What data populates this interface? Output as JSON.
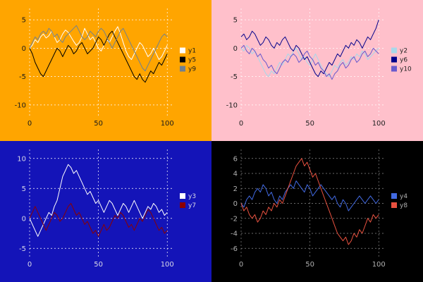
{
  "chart_data": [
    {
      "type": "line",
      "position": "top-left",
      "background": "#FFA500",
      "text_color": "#1a1a1a",
      "grid_color": "#ffffff",
      "xlim": [
        0,
        105
      ],
      "ylim": [
        -12,
        7
      ],
      "xticks": [
        0,
        50,
        100
      ],
      "yticks": [
        5,
        0,
        -5,
        -10
      ],
      "legend_position": "right",
      "grid": true,
      "x": [
        0,
        2,
        4,
        6,
        8,
        10,
        12,
        14,
        16,
        18,
        20,
        22,
        24,
        26,
        28,
        30,
        32,
        34,
        36,
        38,
        40,
        42,
        44,
        46,
        48,
        50,
        52,
        54,
        56,
        58,
        60,
        62,
        64,
        66,
        68,
        70,
        72,
        74,
        76,
        78,
        80,
        82,
        84,
        86,
        88,
        90,
        92,
        94,
        96,
        98,
        100
      ],
      "series": [
        {
          "name": "y1",
          "color": "#ffffff",
          "values": [
            0,
            0.5,
            1.5,
            1,
            2,
            2.5,
            1.8,
            2.2,
            3,
            2,
            1,
            1.5,
            2.5,
            3.2,
            2.8,
            2,
            1.2,
            0.5,
            1,
            2,
            3.5,
            2.5,
            1.5,
            2,
            1,
            0,
            -0.5,
            0.5,
            1.5,
            1,
            2,
            3,
            3.8,
            2.5,
            1,
            -0.5,
            -1.5,
            -2,
            -1,
            0,
            1,
            0.5,
            -0.5,
            -1.5,
            -1,
            0,
            -1,
            -2,
            -1.5,
            -0.5,
            0.5
          ]
        },
        {
          "name": "y5",
          "color": "#000000",
          "values": [
            0,
            -1,
            -2.5,
            -3.5,
            -4.5,
            -5,
            -4,
            -3,
            -2,
            -1,
            0,
            -0.5,
            -1.5,
            -0.5,
            0.5,
            0,
            -1,
            -0.5,
            0.5,
            1,
            0,
            -1,
            -0.5,
            0,
            1,
            2,
            1.5,
            0.5,
            1.5,
            2.5,
            3,
            2,
            1,
            0,
            -1,
            -2,
            -3,
            -4,
            -5,
            -5.5,
            -4.5,
            -5.5,
            -6,
            -5,
            -4,
            -4.5,
            -3.5,
            -2.5,
            -3,
            -2,
            -1
          ]
        },
        {
          "name": "y9",
          "color": "#708090",
          "values": [
            0,
            1,
            2,
            1.5,
            2.5,
            3,
            2.5,
            3.5,
            3,
            2,
            2.5,
            1.5,
            1,
            2,
            2.5,
            3,
            3.5,
            4,
            3,
            2,
            1.5,
            2,
            3,
            2.5,
            2,
            3,
            3.5,
            3,
            2,
            1,
            0,
            1,
            2,
            3,
            3.5,
            2.5,
            1.5,
            0.5,
            -0.5,
            -1.5,
            -2.5,
            -3.5,
            -4,
            -3,
            -2,
            -1,
            0,
            1,
            2,
            2.5,
            2
          ]
        }
      ]
    },
    {
      "type": "line",
      "position": "top-right",
      "background": "#FFC0CB",
      "text_color": "#222222",
      "grid_color": "#ffffff",
      "xlim": [
        0,
        105
      ],
      "ylim": [
        -12,
        7
      ],
      "xticks": [
        0,
        50,
        100
      ],
      "yticks": [
        5,
        0,
        -5,
        -10
      ],
      "legend_position": "right",
      "grid": true,
      "x": [
        0,
        2,
        4,
        6,
        8,
        10,
        12,
        14,
        16,
        18,
        20,
        22,
        24,
        26,
        28,
        30,
        32,
        34,
        36,
        38,
        40,
        42,
        44,
        46,
        48,
        50,
        52,
        54,
        56,
        58,
        60,
        62,
        64,
        66,
        68,
        70,
        72,
        74,
        76,
        78,
        80,
        82,
        84,
        86,
        88,
        90,
        92,
        94,
        96,
        98,
        100
      ],
      "series": [
        {
          "name": "y2",
          "color": "#a8d8ea",
          "values": [
            0,
            -0.5,
            0.5,
            0,
            -1,
            -0.5,
            -1.5,
            -2.5,
            -3.5,
            -4.5,
            -5,
            -4,
            -4.5,
            -3.5,
            -2.5,
            -3,
            -2,
            -1,
            -1.5,
            -0.5,
            0,
            -1,
            -2,
            -1.5,
            -2.5,
            -3,
            -2,
            -1,
            -2,
            -3,
            -4,
            -4.5,
            -5,
            -4,
            -3,
            -3.5,
            -2.5,
            -2,
            -3,
            -2.5,
            -1.5,
            -2,
            -1,
            -1.5,
            -0.5,
            -1,
            -2,
            -1.5,
            -1,
            -0.5,
            0
          ]
        },
        {
          "name": "y6",
          "color": "#00008B",
          "values": [
            2,
            2.5,
            1.5,
            2,
            3,
            2.5,
            1.5,
            0.5,
            1,
            2,
            1.5,
            0.5,
            0,
            1,
            0.5,
            1.5,
            2,
            1,
            0,
            -0.5,
            0.5,
            0,
            -1,
            -2,
            -1.5,
            -2.5,
            -3.5,
            -4.5,
            -5,
            -4,
            -4.5,
            -3.5,
            -2.5,
            -3,
            -2,
            -1,
            -1.5,
            -0.5,
            0.5,
            0,
            1,
            0.5,
            1.5,
            1,
            0,
            1,
            2,
            1.5,
            2.5,
            3.5,
            5
          ]
        },
        {
          "name": "y10",
          "color": "#6A5ACD",
          "values": [
            0,
            0.5,
            -0.5,
            -1,
            0,
            -0.5,
            -1.5,
            -1,
            -2,
            -2.5,
            -3.5,
            -3,
            -4,
            -4.5,
            -3.5,
            -2.5,
            -2,
            -2.5,
            -1.5,
            -1,
            -1.5,
            -2.5,
            -2,
            -1,
            -0.5,
            -1.5,
            -2,
            -3,
            -2.5,
            -3.5,
            -4,
            -5,
            -4.5,
            -5.5,
            -4.5,
            -4,
            -3,
            -2.5,
            -3.5,
            -3,
            -2,
            -1.5,
            -2.5,
            -2,
            -1,
            -0.5,
            -1.5,
            -1,
            0,
            -0.5,
            -1
          ]
        }
      ]
    },
    {
      "type": "line",
      "position": "bottom-left",
      "background": "#1414b8",
      "text_color": "#d8d8e8",
      "grid_color": "#ffffff",
      "xlim": [
        0,
        105
      ],
      "ylim": [
        -6.5,
        11.5
      ],
      "xticks": [
        0,
        50,
        100
      ],
      "yticks": [
        10,
        5,
        0,
        -5
      ],
      "legend_position": "right",
      "grid": true,
      "x": [
        0,
        2,
        4,
        6,
        8,
        10,
        12,
        14,
        16,
        18,
        20,
        22,
        24,
        26,
        28,
        30,
        32,
        34,
        36,
        38,
        40,
        42,
        44,
        46,
        48,
        50,
        52,
        54,
        56,
        58,
        60,
        62,
        64,
        66,
        68,
        70,
        72,
        74,
        76,
        78,
        80,
        82,
        84,
        86,
        88,
        90,
        92,
        94,
        96,
        98,
        100
      ],
      "series": [
        {
          "name": "y3",
          "color": "#ffffff",
          "values": [
            0,
            -1,
            -2,
            -3,
            -2,
            -1,
            0,
            1,
            0.5,
            2,
            3,
            5,
            7,
            8,
            9,
            8.5,
            7.5,
            8,
            7,
            6,
            5,
            4,
            4.5,
            3.5,
            2.5,
            3,
            2,
            1,
            2,
            3,
            2.5,
            1.5,
            0.5,
            1.5,
            2.5,
            2,
            1,
            2,
            3,
            2,
            1,
            0,
            1,
            2,
            1.5,
            2.5,
            2,
            1,
            1.5,
            0.5,
            1
          ]
        },
        {
          "name": "y7",
          "color": "#8B0000",
          "values": [
            0,
            1,
            2,
            1,
            0,
            -1,
            -2,
            -1,
            0,
            1,
            0.5,
            -0.5,
            0,
            1,
            2,
            2.5,
            1.5,
            0.5,
            1,
            0,
            -1,
            -0.5,
            -1.5,
            -2.5,
            -2,
            -3,
            -2,
            -1,
            -2,
            -1.5,
            -0.5,
            0.5,
            0,
            1,
            0.5,
            -0.5,
            -1.5,
            -1,
            -2,
            -1,
            0,
            -0.5,
            0.5,
            1.5,
            1,
            0,
            -1,
            -2,
            -1.5,
            -2.5,
            -2
          ]
        }
      ]
    },
    {
      "type": "line",
      "position": "bottom-right",
      "background": "#000000",
      "text_color": "#b0b0b0",
      "grid_color": "#8a8a8a",
      "xlim": [
        0,
        105
      ],
      "ylim": [
        -7.2,
        7.2
      ],
      "xticks": [
        0,
        50,
        100
      ],
      "yticks": [
        6,
        4,
        2,
        0,
        -2,
        -4,
        -6
      ],
      "legend_position": "right",
      "grid": true,
      "x": [
        0,
        2,
        4,
        6,
        8,
        10,
        12,
        14,
        16,
        18,
        20,
        22,
        24,
        26,
        28,
        30,
        32,
        34,
        36,
        38,
        40,
        42,
        44,
        46,
        48,
        50,
        52,
        54,
        56,
        58,
        60,
        62,
        64,
        66,
        68,
        70,
        72,
        74,
        76,
        78,
        80,
        82,
        84,
        86,
        88,
        90,
        92,
        94,
        96,
        98,
        100
      ],
      "series": [
        {
          "name": "y4",
          "color": "#4169E1",
          "values": [
            0,
            -0.5,
            0.5,
            1,
            0.5,
            1.5,
            2,
            1.5,
            2.5,
            2,
            1,
            1.5,
            0.5,
            0,
            1,
            0.5,
            1.5,
            2,
            2.5,
            2,
            3,
            2.5,
            2,
            1.5,
            2.5,
            2,
            1,
            1.5,
            2,
            2.5,
            2,
            1.5,
            1,
            0.5,
            1,
            0,
            -0.5,
            0.5,
            0,
            -1,
            -0.5,
            0,
            0.5,
            1,
            0.5,
            0,
            0.5,
            1,
            0.5,
            0,
            0.5
          ]
        },
        {
          "name": "y8",
          "color": "#e8513f",
          "values": [
            0,
            -1,
            -0.5,
            -1.5,
            -2,
            -1.5,
            -2.5,
            -2,
            -1,
            -1.5,
            -0.5,
            -1,
            0,
            -0.5,
            0.5,
            0,
            1,
            2,
            3,
            4,
            5,
            5.5,
            6,
            5,
            5.5,
            4.5,
            3.5,
            4,
            3,
            2,
            1,
            0,
            -1,
            -2,
            -3,
            -4,
            -4.5,
            -5,
            -4.5,
            -5.5,
            -5,
            -4,
            -4.5,
            -3.5,
            -4,
            -3,
            -2,
            -2.5,
            -1.5,
            -2,
            -1.5
          ]
        }
      ]
    }
  ]
}
